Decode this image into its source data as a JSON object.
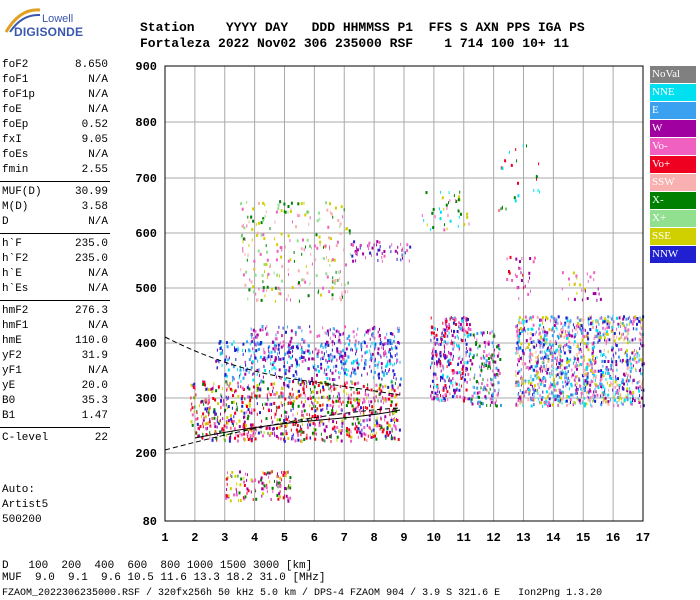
{
  "logo": {
    "line1": "Lowell",
    "line2": "DIGISONDE"
  },
  "header": {
    "labels": "Station    YYYY DAY   DDD HHMMSS P1  FFS S AXN PPS IGA PS",
    "values": "Fortaleza 2022 Nov02 306 235000 RSF    1 714 100 10+ 11"
  },
  "params": [
    {
      "label": "foF2",
      "value": "8.650"
    },
    {
      "label": "foF1",
      "value": "N/A"
    },
    {
      "label": "foF1p",
      "value": "N/A"
    },
    {
      "label": "foE",
      "value": "N/A"
    },
    {
      "label": "foEp",
      "value": "0.52"
    },
    {
      "label": "fxI",
      "value": "9.05"
    },
    {
      "label": "foEs",
      "value": "N/A"
    },
    {
      "label": "fmin",
      "value": "2.55"
    },
    {
      "label": "MUF(D)",
      "value": "30.99"
    },
    {
      "label": "M(D)",
      "value": "3.58"
    },
    {
      "label": "D",
      "value": "N/A"
    },
    {
      "label": "h`F",
      "value": "235.0"
    },
    {
      "label": "h`F2",
      "value": "235.0"
    },
    {
      "label": "h`E",
      "value": "N/A"
    },
    {
      "label": "h`Es",
      "value": "N/A"
    },
    {
      "label": "hmF2",
      "value": "276.3"
    },
    {
      "label": "hmF1",
      "value": "N/A"
    },
    {
      "label": "hmE",
      "value": "110.0"
    },
    {
      "label": "yF2",
      "value": "31.9"
    },
    {
      "label": "yF1",
      "value": "N/A"
    },
    {
      "label": "yE",
      "value": "20.0"
    },
    {
      "label": "B0",
      "value": "35.3"
    },
    {
      "label": "B1",
      "value": "1.47"
    },
    {
      "label": "C-level",
      "value": "22"
    }
  ],
  "auto": {
    "line1": "Auto:",
    "line2": "Artist5",
    "line3": "500200"
  },
  "legend": [
    {
      "label": "NoVal",
      "color": "#808080"
    },
    {
      "label": "NNE",
      "color": "#00e0f0"
    },
    {
      "label": "E",
      "color": "#3aa0f0"
    },
    {
      "label": "W",
      "color": "#a000a0"
    },
    {
      "label": "Vo-",
      "color": "#f060c0"
    },
    {
      "label": "Vo+",
      "color": "#f00020"
    },
    {
      "label": "SSW",
      "color": "#f8b0b0"
    },
    {
      "label": "X-",
      "color": "#008000"
    },
    {
      "label": "X+",
      "color": "#90e090"
    },
    {
      "label": "SSE",
      "color": "#d0d000"
    },
    {
      "label": "NNW",
      "color": "#2020d0"
    }
  ],
  "axes": {
    "y_ticks": [
      "900",
      "800",
      "700",
      "600",
      "500",
      "400",
      "300",
      "200",
      "80"
    ],
    "x_ticks": [
      "1",
      "2",
      "3",
      "4",
      "5",
      "6",
      "7",
      "8",
      "9",
      "10",
      "11",
      "12",
      "13",
      "14",
      "15",
      "16",
      "17"
    ]
  },
  "dline": {
    "d_label": "D   ",
    "d_values": "100  200  400  600  800 1000 1500 3000 [km]",
    "muf_label": "MUF",
    "muf_values": "9.0  9.1  9.6 10.5 11.6 13.3 18.2 31.0 [MHz]"
  },
  "footer": "FZAOM_2022306235000.RSF / 320fx256h 50 kHz 5.0 km / DPS-4 FZAOM 904 / 3.9 S 321.6 E   Ion2Png 1.3.20"
}
